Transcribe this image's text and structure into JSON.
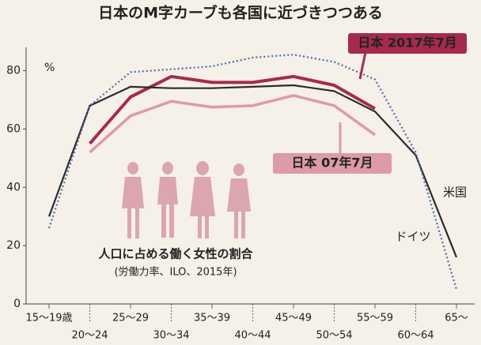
{
  "chart_data": {
    "type": "line",
    "title": "日本のM字カーブも各国に近づきつつある",
    "y_unit": "%",
    "annotation": "人口に占める働く女性の割合",
    "source": "(労働力率、ILO、2015年)",
    "categories": [
      "15～19歳",
      "20～24",
      "25～29",
      "30～34",
      "35～39",
      "40～44",
      "45～49",
      "50～54",
      "55～59",
      "60～64",
      "65～"
    ],
    "series": [
      {
        "name": "日本 2017年7月",
        "color": "#a52a4e",
        "style": "solid",
        "values": [
          null,
          55,
          71,
          78,
          76,
          76,
          78,
          75,
          67,
          null,
          null
        ]
      },
      {
        "name": "日本 07年7月",
        "color": "#dd9aa8",
        "style": "solid",
        "values": [
          null,
          52,
          64.5,
          69.5,
          67.5,
          68,
          71.5,
          68,
          58,
          null,
          null
        ]
      },
      {
        "name": "米国",
        "color": "#2b2b2b",
        "style": "solid",
        "values": [
          30,
          68,
          74.5,
          74,
          74,
          74.5,
          75,
          73,
          66,
          51,
          16
        ]
      },
      {
        "name": "ドイツ",
        "color": "#4a6ea8",
        "style": "dotted",
        "values": [
          26,
          68,
          79.5,
          80.5,
          81.5,
          84.5,
          85.5,
          83,
          77,
          52,
          5
        ]
      }
    ],
    "ylim": [
      0,
      88
    ],
    "yticks": [
      0,
      20,
      40,
      60,
      80
    ]
  }
}
